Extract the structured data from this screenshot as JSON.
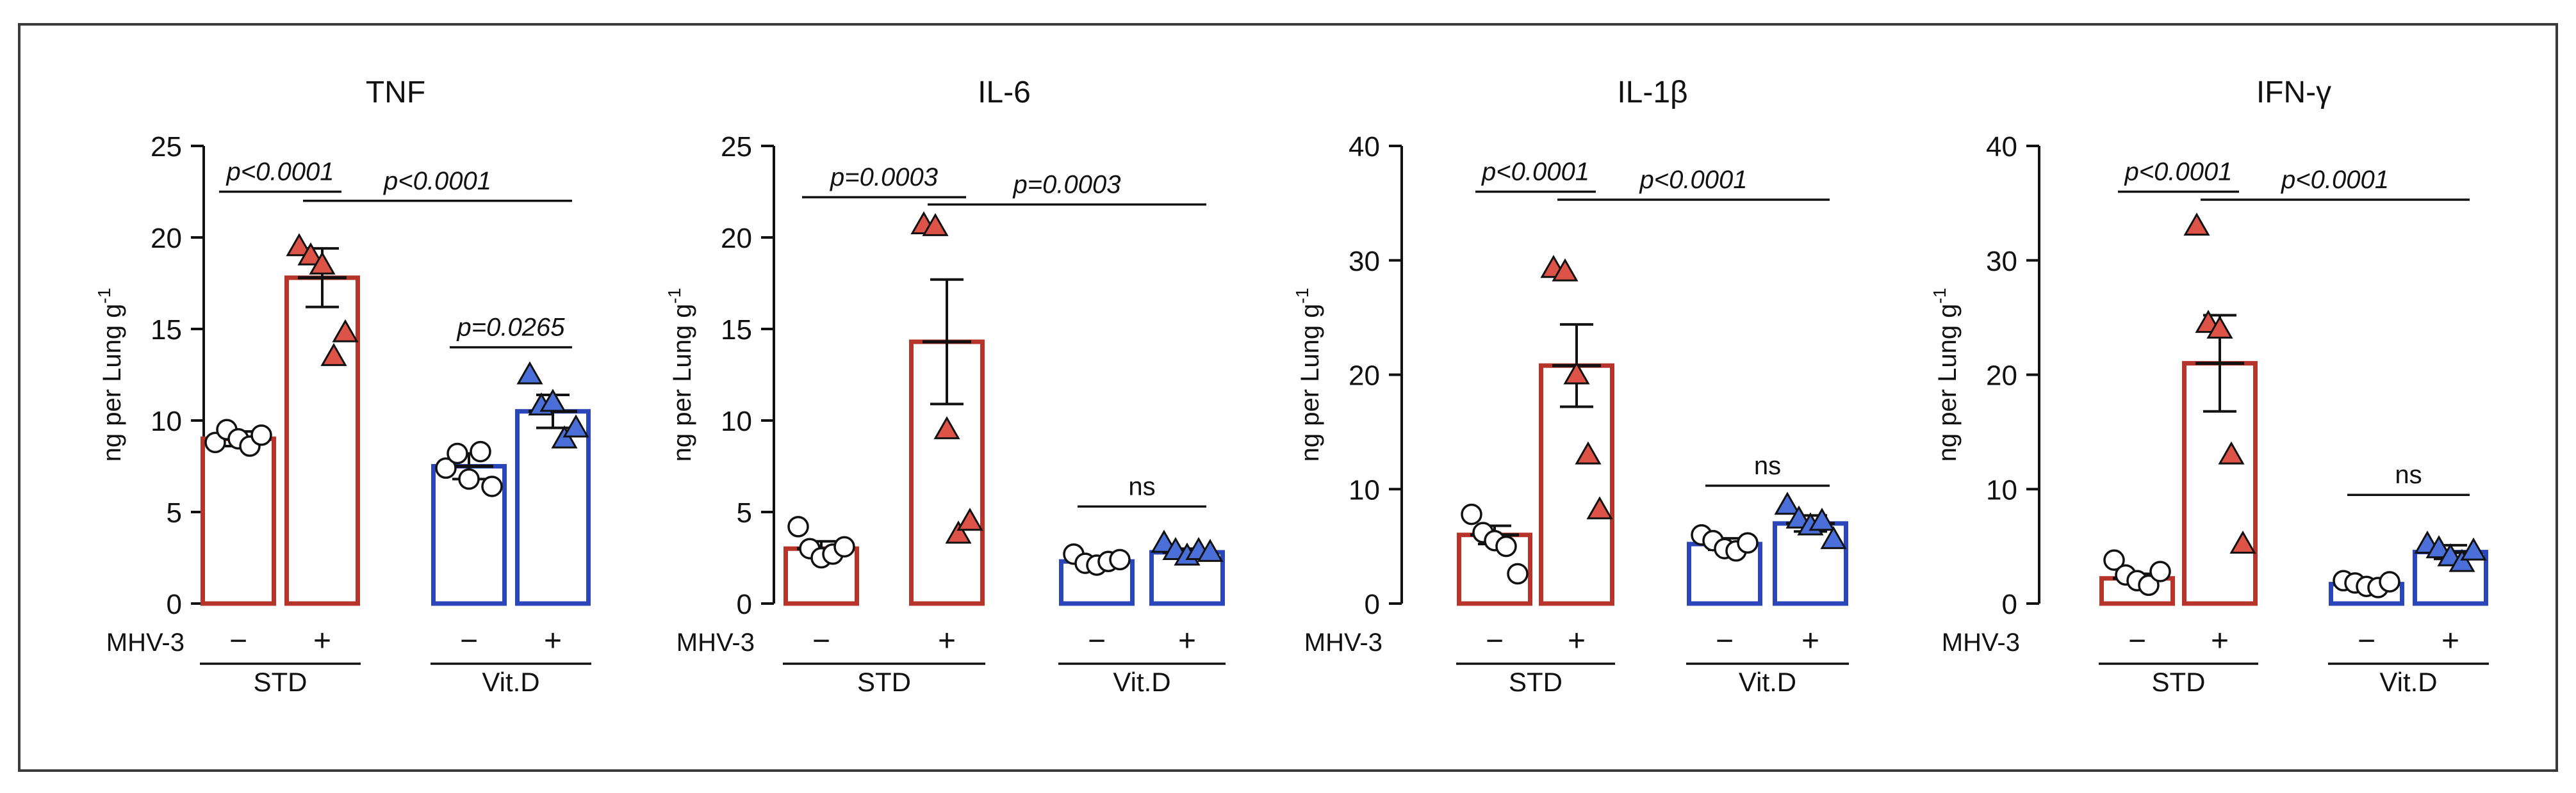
{
  "figure": {
    "mhv_label": "MHV-3",
    "neg_sign": "−",
    "pos_sign": "+",
    "diet_labels": [
      "STD",
      "Vit.D"
    ]
  },
  "colors": {
    "std": "#b6342a",
    "vitd": "#2b46b8",
    "std_marker": "#dd5347",
    "vitd_marker": "#4a6fd8",
    "axis": "#111111"
  },
  "chart_data": [
    {
      "type": "bar",
      "title": "TNF",
      "ylabel": "ng per Lung g",
      "ylabel_superscript": "-1",
      "ylim": [
        0,
        25
      ],
      "yticks": [
        "0",
        "5",
        "10",
        "15",
        "20",
        "25"
      ],
      "ytick_values": [
        0,
        5,
        10,
        15,
        20,
        25
      ],
      "categories": [
        "STD −",
        "STD +",
        "Vit.D −",
        "Vit.D +"
      ],
      "values": [
        9.0,
        17.8,
        7.5,
        10.5
      ],
      "sem": [
        0.4,
        1.6,
        0.7,
        0.9
      ],
      "points": [
        [
          8.8,
          9.5,
          9.0,
          8.6,
          9.2
        ],
        [
          19.5,
          19.0,
          18.5,
          13.5,
          14.8
        ],
        [
          7.4,
          8.2,
          6.8,
          8.3,
          6.4
        ],
        [
          12.5,
          10.8,
          11.0,
          9.0,
          9.6
        ]
      ],
      "comparisons": [
        {
          "from": 0,
          "to": 1,
          "label": "p<0.0001",
          "y": 22.5
        },
        {
          "from": 1,
          "to": 3,
          "label": "p<0.0001",
          "y": 22.0
        },
        {
          "from": 2,
          "to": 3,
          "label": "p=0.0265",
          "y": 14.0
        }
      ]
    },
    {
      "type": "bar",
      "title": "IL-6",
      "ylabel": "ng per Lung g",
      "ylabel_superscript": "-1",
      "ylim": [
        0,
        25
      ],
      "yticks": [
        "0",
        "5",
        "10",
        "15",
        "20",
        "25"
      ],
      "ytick_values": [
        0,
        5,
        10,
        15,
        20,
        25
      ],
      "categories": [
        "STD −",
        "STD +",
        "Vit.D −",
        "Vit.D +"
      ],
      "values": [
        3.0,
        14.3,
        2.3,
        2.8
      ],
      "sem": [
        0.4,
        3.4,
        0.2,
        0.2
      ],
      "points": [
        [
          4.2,
          3.0,
          2.5,
          2.7,
          3.1
        ],
        [
          20.7,
          20.6,
          9.5,
          3.8,
          4.5
        ],
        [
          2.7,
          2.2,
          2.1,
          2.3,
          2.4
        ],
        [
          3.3,
          2.9,
          2.6,
          2.9,
          2.8
        ]
      ],
      "comparisons": [
        {
          "from": 0,
          "to": 1,
          "label": "p=0.0003",
          "y": 22.2
        },
        {
          "from": 1,
          "to": 3,
          "label": "p=0.0003",
          "y": 21.8
        },
        {
          "from": 2,
          "to": 3,
          "label": "ns",
          "y": 5.3
        }
      ]
    },
    {
      "type": "bar",
      "title": "IL-1β",
      "ylabel": "ng per Lung g",
      "ylabel_superscript": "-1",
      "ylim": [
        0,
        40
      ],
      "yticks": [
        "0",
        "10",
        "20",
        "30",
        "40"
      ],
      "ytick_values": [
        0,
        10,
        20,
        30,
        40
      ],
      "categories": [
        "STD −",
        "STD +",
        "Vit.D −",
        "Vit.D +"
      ],
      "values": [
        6.0,
        20.8,
        5.2,
        7.0
      ],
      "sem": [
        0.8,
        3.6,
        0.5,
        0.7
      ],
      "points": [
        [
          7.8,
          6.2,
          5.5,
          5.0,
          2.6
        ],
        [
          29.3,
          29.0,
          20.0,
          13.0,
          8.2
        ],
        [
          6.0,
          5.5,
          4.8,
          4.6,
          5.3
        ],
        [
          8.6,
          7.4,
          6.8,
          7.2,
          5.6
        ]
      ],
      "comparisons": [
        {
          "from": 0,
          "to": 1,
          "label": "p<0.0001",
          "y": 36.0
        },
        {
          "from": 1,
          "to": 3,
          "label": "p<0.0001",
          "y": 35.3
        },
        {
          "from": 2,
          "to": 3,
          "label": "ns",
          "y": 10.3
        }
      ]
    },
    {
      "type": "bar",
      "title": "IFN-γ",
      "ylabel": "ng per Lung g",
      "ylabel_superscript": "-1",
      "ylim": [
        0,
        40
      ],
      "yticks": [
        "0",
        "10",
        "20",
        "30",
        "40"
      ],
      "ytick_values": [
        0,
        10,
        20,
        30,
        40
      ],
      "categories": [
        "STD −",
        "STD +",
        "Vit.D −",
        "Vit.D +"
      ],
      "values": [
        2.2,
        21.0,
        1.7,
        4.5
      ],
      "sem": [
        0.4,
        4.2,
        0.2,
        0.6
      ],
      "points": [
        [
          3.8,
          2.5,
          2.0,
          1.6,
          2.8
        ],
        [
          33.0,
          24.5,
          24.0,
          13.0,
          5.2
        ],
        [
          2.0,
          1.8,
          1.5,
          1.4,
          1.9
        ],
        [
          5.2,
          4.8,
          4.1,
          3.6,
          4.6
        ]
      ],
      "comparisons": [
        {
          "from": 0,
          "to": 1,
          "label": "p<0.0001",
          "y": 36.0
        },
        {
          "from": 1,
          "to": 3,
          "label": "p<0.0001",
          "y": 35.3
        },
        {
          "from": 2,
          "to": 3,
          "label": "ns",
          "y": 9.5
        }
      ]
    }
  ]
}
